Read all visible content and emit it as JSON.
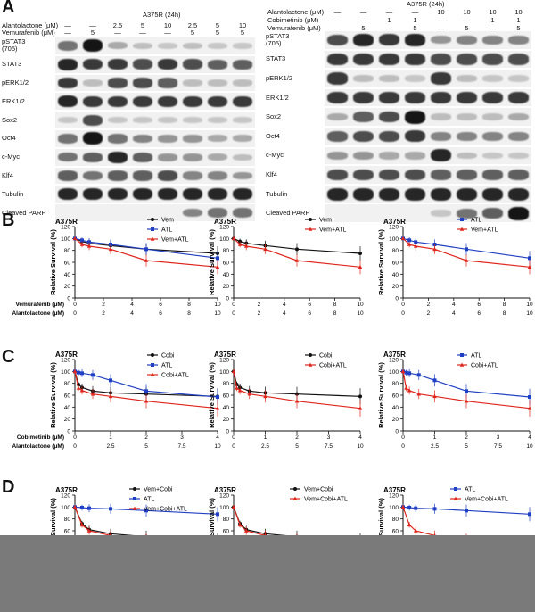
{
  "panels": {
    "A": "A",
    "B": "B",
    "C": "C",
    "D": "D"
  },
  "blot_left": {
    "title": "A375R (24h)",
    "row_headers": [
      "Alantolactone (μM)",
      "Vemurafenib (μM)"
    ],
    "alantolactone": [
      "—",
      "—",
      "2.5",
      "5",
      "10",
      "2.5",
      "5",
      "10"
    ],
    "vemurafenib": [
      "—",
      "5",
      "—",
      "—",
      "—",
      "5",
      "5",
      "5"
    ],
    "proteins": [
      "pSTAT3\n(705)",
      "STAT3",
      "pERK1/2",
      "ERK1/2",
      "Sox2",
      "Oct4",
      "c-Myc",
      "Klf4",
      "Tubulin",
      "Cleaved PARP"
    ],
    "intensity": [
      [
        0.5,
        1,
        0.2,
        0.1,
        0.05,
        0.1,
        0.05,
        0.05
      ],
      [
        0.9,
        0.8,
        0.8,
        0.7,
        0.8,
        0.7,
        0.6,
        0.6
      ],
      [
        0.8,
        0.1,
        0.7,
        0.7,
        0.6,
        0.1,
        0.1,
        0.1
      ],
      [
        0.9,
        0.8,
        0.8,
        0.8,
        0.8,
        0.8,
        0.8,
        0.8
      ],
      [
        0.05,
        0.7,
        0.05,
        0.05,
        0.05,
        0.05,
        0.05,
        0.05
      ],
      [
        0.5,
        1,
        0.5,
        0.4,
        0.3,
        0.3,
        0.2,
        0.2
      ],
      [
        0.5,
        0.6,
        0.9,
        0.6,
        0.3,
        0.3,
        0.2,
        0.1
      ],
      [
        0.6,
        0.5,
        0.6,
        0.6,
        0.7,
        0.4,
        0.4,
        0.3
      ],
      [
        0.9,
        0.9,
        0.9,
        0.9,
        0.9,
        0.9,
        0.9,
        0.9
      ],
      [
        0,
        0,
        0,
        0,
        0,
        0.4,
        0.5,
        0.5
      ]
    ]
  },
  "blot_right": {
    "title": "A375R (24h)",
    "row_headers": [
      "Alantolactone (μM)",
      "Cobimetinib (μM)",
      "Vemurafenib (μM)"
    ],
    "alantolactone": [
      "—",
      "—",
      "—",
      "—",
      "10",
      "10",
      "10",
      "10"
    ],
    "cobimetinib": [
      "—",
      "—",
      "1",
      "1",
      "—",
      "—",
      "1",
      "1"
    ],
    "vemurafenib": [
      "—",
      "5",
      "—",
      "5",
      "—",
      "5",
      "—",
      "5"
    ],
    "proteins": [
      "pSTAT3\n(705)",
      "STAT3",
      "pERK1/2",
      "ERK1/2",
      "Sox2",
      "Oct4",
      "c-Myc",
      "Klf4",
      "Tubulin",
      "Cleaved PARP"
    ],
    "intensity": [
      [
        0.7,
        0.9,
        0.8,
        0.9,
        0.3,
        0.4,
        0.4,
        0.4
      ],
      [
        0.8,
        0.8,
        0.8,
        0.8,
        0.7,
        0.7,
        0.7,
        0.7
      ],
      [
        0.8,
        0.1,
        0.1,
        0.05,
        0.8,
        0.1,
        0.05,
        0.05
      ],
      [
        0.8,
        0.8,
        0.8,
        0.8,
        0.8,
        0.8,
        0.8,
        0.8
      ],
      [
        0.2,
        0.6,
        0.7,
        1,
        0.1,
        0.1,
        0.1,
        0.2
      ],
      [
        0.6,
        0.7,
        0.7,
        0.8,
        0.4,
        0.4,
        0.4,
        0.4
      ],
      [
        0.3,
        0.3,
        0.2,
        0.2,
        0.9,
        0.1,
        0.05,
        0.05
      ],
      [
        0.7,
        0.7,
        0.7,
        0.7,
        0.6,
        0.6,
        0.6,
        0.6
      ],
      [
        0.9,
        0.9,
        0.9,
        0.9,
        0.9,
        0.9,
        0.9,
        0.9
      ],
      [
        0,
        0,
        0,
        0,
        0.05,
        0.5,
        0.6,
        1
      ]
    ]
  },
  "colors": {
    "black": "#111111",
    "blue": "#1f3fc4",
    "red": "#e0251b"
  },
  "chart_data": [
    {
      "type": "line",
      "panel": "B",
      "title": "A375R",
      "ylabel": "Relative Survival (%)",
      "ylim": [
        0,
        120
      ],
      "yticks": [
        0,
        20,
        40,
        60,
        80,
        100,
        120
      ],
      "xrows": [
        {
          "label": "Vemurafenib (μM)",
          "ticks": [
            "0",
            "2",
            "4",
            "6",
            "8",
            "10"
          ]
        },
        {
          "label": "Alantolactone (μM)",
          "ticks": [
            "0",
            "2",
            "4",
            "6",
            "8",
            "10"
          ]
        }
      ],
      "x": [
        0,
        0.5,
        1,
        2.5,
        5,
        10
      ],
      "xlim": [
        0,
        10
      ],
      "series": [
        {
          "name": "Vem",
          "color": "black",
          "marker": "circle",
          "values": [
            100,
            95,
            92,
            88,
            82,
            75
          ]
        },
        {
          "name": "ATL",
          "color": "blue",
          "marker": "square",
          "values": [
            100,
            97,
            94,
            90,
            82,
            67
          ]
        },
        {
          "name": "Vem+ATL",
          "color": "red",
          "marker": "triangle",
          "values": [
            100,
            90,
            87,
            82,
            63,
            52
          ]
        }
      ]
    },
    {
      "type": "line",
      "panel": "B",
      "title": "A375R",
      "ylabel": "Relative Survival (%)",
      "ylim": [
        0,
        120
      ],
      "yticks": [
        0,
        20,
        40,
        60,
        80,
        100,
        120
      ],
      "xrows": [
        {
          "label": "",
          "ticks": [
            "0",
            "2",
            "4",
            "6",
            "8",
            "10"
          ]
        },
        {
          "label": "",
          "ticks": [
            "0",
            "2",
            "4",
            "6",
            "8",
            "10"
          ]
        }
      ],
      "x": [
        0,
        0.5,
        1,
        2.5,
        5,
        10
      ],
      "xlim": [
        0,
        10
      ],
      "series": [
        {
          "name": "Vem",
          "color": "black",
          "marker": "circle",
          "values": [
            100,
            95,
            92,
            88,
            82,
            75
          ]
        },
        {
          "name": "Vem+ATL",
          "color": "red",
          "marker": "triangle",
          "values": [
            100,
            90,
            87,
            82,
            63,
            52
          ]
        }
      ]
    },
    {
      "type": "line",
      "panel": "B",
      "title": "A375R",
      "ylabel": "Relative Survival (%)",
      "ylim": [
        0,
        120
      ],
      "yticks": [
        0,
        20,
        40,
        60,
        80,
        100,
        120
      ],
      "xrows": [
        {
          "label": "",
          "ticks": [
            "0",
            "2",
            "4",
            "6",
            "8",
            "10"
          ]
        },
        {
          "label": "",
          "ticks": [
            "0",
            "2",
            "4",
            "6",
            "8",
            "10"
          ]
        }
      ],
      "x": [
        0,
        0.5,
        1,
        2.5,
        5,
        10
      ],
      "xlim": [
        0,
        10
      ],
      "series": [
        {
          "name": "ATL",
          "color": "blue",
          "marker": "square",
          "values": [
            100,
            97,
            94,
            90,
            82,
            67
          ]
        },
        {
          "name": "Vem+ATL",
          "color": "red",
          "marker": "triangle",
          "values": [
            100,
            90,
            87,
            82,
            63,
            52
          ]
        }
      ]
    },
    {
      "type": "line",
      "panel": "C",
      "title": "A375R",
      "ylabel": "Relative Survival (%)",
      "ylim": [
        0,
        120
      ],
      "yticks": [
        0,
        20,
        40,
        60,
        80,
        100,
        120
      ],
      "xrows": [
        {
          "label": "Cobimetinib (μM)",
          "ticks": [
            "0",
            "1",
            "2",
            "3",
            "4"
          ]
        },
        {
          "label": "Alantolactone (μM)",
          "ticks": [
            "0",
            "2.5",
            "5",
            "7.5",
            "10"
          ]
        }
      ],
      "x": [
        0,
        0.1,
        0.2,
        0.5,
        1,
        2,
        4
      ],
      "xlim": [
        0,
        4
      ],
      "series": [
        {
          "name": "Cobi",
          "color": "black",
          "marker": "circle",
          "values": [
            100,
            78,
            73,
            67,
            64,
            62,
            58
          ]
        },
        {
          "name": "ATL",
          "color": "blue",
          "marker": "square",
          "values": [
            100,
            98,
            97,
            94,
            85,
            67,
            57
          ]
        },
        {
          "name": "Cobi+ATL",
          "color": "red",
          "marker": "triangle",
          "values": [
            100,
            72,
            68,
            62,
            58,
            50,
            38
          ]
        }
      ]
    },
    {
      "type": "line",
      "panel": "C",
      "title": "A375R",
      "ylabel": "Relative Survival (%)",
      "ylim": [
        0,
        120
      ],
      "yticks": [
        0,
        20,
        40,
        60,
        80,
        100,
        120
      ],
      "xrows": [
        {
          "label": "",
          "ticks": [
            "0",
            "1",
            "2",
            "3",
            "4"
          ]
        },
        {
          "label": "",
          "ticks": [
            "0",
            "2.5",
            "5",
            "7.5",
            "10"
          ]
        }
      ],
      "x": [
        0,
        0.1,
        0.2,
        0.5,
        1,
        2,
        4
      ],
      "xlim": [
        0,
        4
      ],
      "series": [
        {
          "name": "Cobi",
          "color": "black",
          "marker": "circle",
          "values": [
            100,
            78,
            73,
            67,
            64,
            62,
            58
          ]
        },
        {
          "name": "Cobi+ATL",
          "color": "red",
          "marker": "triangle",
          "values": [
            100,
            72,
            68,
            62,
            58,
            50,
            38
          ]
        }
      ]
    },
    {
      "type": "line",
      "panel": "C",
      "title": "A375R",
      "ylabel": "Relative Survival (%)",
      "ylim": [
        0,
        120
      ],
      "yticks": [
        0,
        20,
        40,
        60,
        80,
        100,
        120
      ],
      "xrows": [
        {
          "label": "",
          "ticks": [
            "0",
            "1",
            "2",
            "3",
            "4"
          ]
        },
        {
          "label": "",
          "ticks": [
            "0",
            "2.5",
            "5",
            "7.5",
            "10"
          ]
        }
      ],
      "x": [
        0,
        0.1,
        0.2,
        0.5,
        1,
        2,
        4
      ],
      "xlim": [
        0,
        4
      ],
      "series": [
        {
          "name": "ATL",
          "color": "blue",
          "marker": "square",
          "values": [
            100,
            98,
            97,
            94,
            85,
            67,
            57
          ]
        },
        {
          "name": "Cobi+ATL",
          "color": "red",
          "marker": "triangle",
          "values": [
            100,
            72,
            68,
            62,
            58,
            50,
            38
          ]
        }
      ]
    },
    {
      "type": "line",
      "panel": "D",
      "title": "A375R",
      "ylabel": "Relative Survival (%)",
      "ylim": [
        0,
        120
      ],
      "yticks": [
        0,
        20,
        40,
        60,
        80,
        100,
        120
      ],
      "xrows": [],
      "x": [
        0,
        0.5,
        1,
        2.5,
        5,
        10
      ],
      "xlim": [
        0,
        10
      ],
      "series": [
        {
          "name": "Vem+Cobi",
          "color": "black",
          "marker": "circle",
          "values": [
            100,
            72,
            62,
            55,
            50,
            45
          ]
        },
        {
          "name": "ATL",
          "color": "blue",
          "marker": "square",
          "values": [
            100,
            99,
            98,
            97,
            94,
            88
          ]
        },
        {
          "name": "Vem+Cobi+ATL",
          "color": "red",
          "marker": "triangle",
          "values": [
            100,
            70,
            60,
            52,
            45,
            40
          ]
        }
      ]
    },
    {
      "type": "line",
      "panel": "D",
      "title": "A375R",
      "ylabel": "Relative Survival (%)",
      "ylim": [
        0,
        120
      ],
      "yticks": [
        0,
        20,
        40,
        60,
        80,
        100,
        120
      ],
      "xrows": [],
      "x": [
        0,
        0.5,
        1,
        2.5,
        5,
        10
      ],
      "xlim": [
        0,
        10
      ],
      "series": [
        {
          "name": "Vem+Cobi",
          "color": "black",
          "marker": "circle",
          "values": [
            100,
            72,
            62,
            55,
            50,
            45
          ]
        },
        {
          "name": "Vem+Cobi+ATL",
          "color": "red",
          "marker": "triangle",
          "values": [
            100,
            70,
            60,
            52,
            45,
            40
          ]
        }
      ]
    },
    {
      "type": "line",
      "panel": "D",
      "title": "A375R",
      "ylabel": "Relative Survival (%)",
      "ylim": [
        0,
        120
      ],
      "yticks": [
        0,
        20,
        40,
        60,
        80,
        100,
        120
      ],
      "xrows": [],
      "x": [
        0,
        0.5,
        1,
        2.5,
        5,
        10
      ],
      "xlim": [
        0,
        10
      ],
      "series": [
        {
          "name": "ATL",
          "color": "blue",
          "marker": "square",
          "values": [
            100,
            99,
            98,
            97,
            94,
            88
          ]
        },
        {
          "name": "Vem+Cobi+ATL",
          "color": "red",
          "marker": "triangle",
          "values": [
            100,
            70,
            60,
            52,
            45,
            40
          ]
        }
      ]
    }
  ]
}
